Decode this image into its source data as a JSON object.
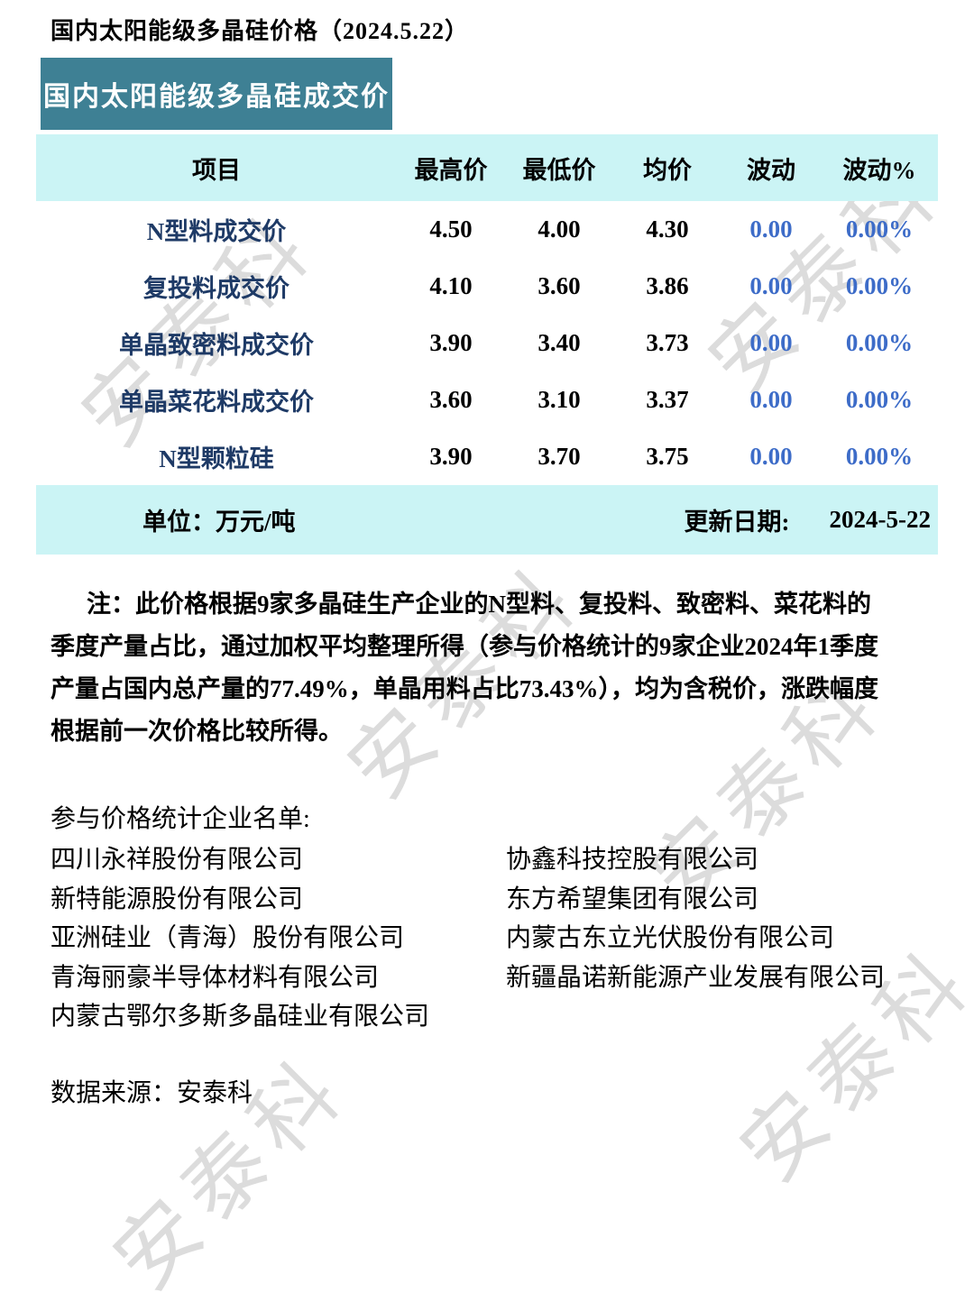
{
  "page": {
    "title": "国内太阳能级多晶硅价格（2024.5.22）",
    "banner": "国内太阳能级多晶硅成交价"
  },
  "table": {
    "headers": [
      "项目",
      "最高价",
      "最低价",
      "均价",
      "波动",
      "波动%"
    ],
    "rows": [
      {
        "item": "N型料成交价",
        "high": "4.50",
        "low": "4.00",
        "avg": "4.30",
        "change": "0.00",
        "change_pct": "0.00%"
      },
      {
        "item": "复投料成交价",
        "high": "4.10",
        "low": "3.60",
        "avg": "3.86",
        "change": "0.00",
        "change_pct": "0.00%"
      },
      {
        "item": "单晶致密料成交价",
        "high": "3.90",
        "low": "3.40",
        "avg": "3.73",
        "change": "0.00",
        "change_pct": "0.00%"
      },
      {
        "item": "单晶菜花料成交价",
        "high": "3.60",
        "low": "3.10",
        "avg": "3.37",
        "change": "0.00",
        "change_pct": "0.00%"
      },
      {
        "item": "N型颗粒硅",
        "high": "3.90",
        "low": "3.70",
        "avg": "3.75",
        "change": "0.00",
        "change_pct": "0.00%"
      }
    ],
    "unit_label": "单位：万元/吨",
    "update_label": "更新日期:",
    "update_date": "2024-5-22"
  },
  "note": {
    "lines": [
      "注：此价格根据9家多晶硅生产企业的N型料、复投料、致密料、菜花料的",
      "季度产量占比，通过加权平均整理所得（参与价格统计的9家企业2024年1季度",
      "产量占国内总产量的77.49%，单晶用料占比73.43%），均为含税价，涨跌幅度",
      "根据前一次价格比较所得。"
    ]
  },
  "companies": {
    "heading": "参与价格统计企业名单:",
    "left": [
      "四川永祥股份有限公司",
      "新特能源股份有限公司",
      "亚洲硅业（青海）股份有限公司",
      "青海丽豪半导体材料有限公司",
      "内蒙古鄂尔多斯多晶硅业有限公司"
    ],
    "right": [
      "协鑫科技控股有限公司",
      "东方希望集团有限公司",
      "内蒙古东立光伏股份有限公司",
      "新疆晶诺新能源产业发展有限公司"
    ]
  },
  "source": {
    "label": "数据来源：安泰科"
  },
  "watermark": {
    "text": "安泰科"
  },
  "colors": {
    "banner_teal": "#3e8094",
    "band_cyan": "#cbf4f5",
    "item_navy": "#1e3a66",
    "value_blue": "#3d6cc8",
    "watermark_gray": "#bdbdbd"
  }
}
